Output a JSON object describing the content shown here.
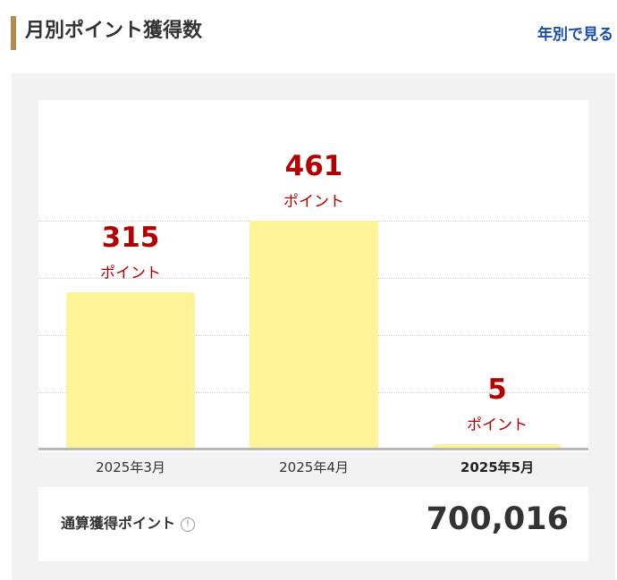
{
  "header": {
    "title": "月別ポイント獲得数",
    "yearly_link": "年別で見る"
  },
  "colors": {
    "accent_bar": "#b38b4b",
    "bar_fill": "#fff397",
    "value_text": "#b30000",
    "link": "#1a4fa3"
  },
  "chart_data": {
    "type": "bar",
    "categories": [
      "2025年3月",
      "2025年4月",
      "2025年5月"
    ],
    "values": [
      315,
      461,
      5
    ],
    "value_unit": "ポイント",
    "ylim": [
      0,
      461
    ],
    "grid": true,
    "current_category": "2025年5月"
  },
  "total": {
    "label": "通算獲得ポイント",
    "info_icon": "info-icon",
    "value": "700,016"
  }
}
